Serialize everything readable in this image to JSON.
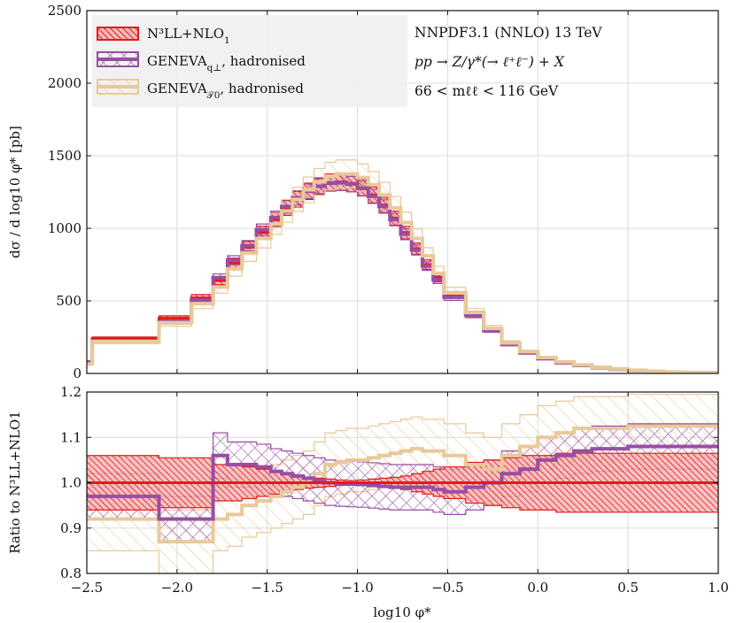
{
  "colors": {
    "n3ll": "#e41a1c",
    "geneva_qt": "#984ea3",
    "geneva_tau": "#e8c99a"
  },
  "legend": [
    {
      "key": "n3ll",
      "base": "N³LL+NLO",
      "sub": "1",
      "tail": ""
    },
    {
      "key": "geneva_qt",
      "base": "GENEVA",
      "sub": "q⊥",
      "tail": ", hadronised"
    },
    {
      "key": "geneva_tau",
      "base": "GENEVA",
      "sub": "𝒯0",
      "tail": ", hadronised"
    }
  ],
  "annotations": [
    "NNPDF3.1 (NNLO) 13 TeV",
    "pp → Z/γ*(→ ℓ⁺ℓ⁻) + X",
    "66 < mℓℓ < 116 GeV"
  ],
  "chart_data": [
    {
      "type": "line",
      "title": "",
      "xlabel": "log10 φ*",
      "ylabel": "dσ / d log10 φ* [pb]",
      "xlim": [
        -2.5,
        1.0
      ],
      "ylim": [
        0,
        2500
      ],
      "xticks": [
        "−2.5",
        "−2.0",
        "−1.5",
        "−1.0",
        "−0.5",
        "0.0",
        "0.5",
        "1.0"
      ],
      "yticks": [
        "0",
        "500",
        "1000",
        "1500",
        "2000",
        "2500"
      ],
      "bin_edges": [
        -2.5,
        -2.47,
        -2.1,
        -1.92,
        -1.8,
        -1.72,
        -1.64,
        -1.56,
        -1.48,
        -1.42,
        -1.36,
        -1.3,
        -1.24,
        -1.18,
        -1.12,
        -1.06,
        -1.0,
        -0.94,
        -0.88,
        -0.82,
        -0.76,
        -0.7,
        -0.64,
        -0.58,
        -0.52,
        -0.4,
        -0.3,
        -0.2,
        -0.1,
        0.0,
        0.1,
        0.2,
        0.3,
        0.4,
        0.5,
        0.6,
        0.7,
        0.8,
        1.0
      ],
      "series": [
        {
          "name": "N³LL+NLO1",
          "values": [
            80,
            240,
            380,
            520,
            640,
            760,
            870,
            970,
            1060,
            1140,
            1200,
            1255,
            1290,
            1315,
            1320,
            1310,
            1280,
            1230,
            1160,
            1070,
            970,
            860,
            750,
            660,
            540,
            410,
            300,
            200,
            140,
            100,
            72,
            52,
            38,
            27,
            19,
            13,
            9,
            5
          ],
          "unc": 0.045
        },
        {
          "name": "GENEVA q⊥, hadronised",
          "values": [
            80,
            225,
            355,
            505,
            660,
            780,
            880,
            990,
            1075,
            1150,
            1210,
            1255,
            1290,
            1310,
            1315,
            1305,
            1275,
            1220,
            1150,
            1060,
            960,
            850,
            740,
            645,
            525,
            400,
            295,
            200,
            142,
            102,
            75,
            55,
            40,
            29,
            20,
            14,
            9,
            5
          ],
          "unc": 0.04
        },
        {
          "name": "GENEVA 𝒯0, hadronised",
          "values": [
            65,
            220,
            350,
            480,
            595,
            720,
            830,
            930,
            1030,
            1120,
            1200,
            1265,
            1320,
            1360,
            1375,
            1375,
            1350,
            1300,
            1230,
            1140,
            1040,
            930,
            810,
            690,
            555,
            420,
            310,
            210,
            150,
            110,
            80,
            59,
            43,
            31,
            22,
            15,
            10,
            5
          ],
          "unc": 0.07
        }
      ]
    },
    {
      "type": "line",
      "title": "",
      "xlabel": "log10 φ*",
      "ylabel": "Ratio to N³LL+NLO1",
      "xlim": [
        -2.5,
        1.0
      ],
      "ylim": [
        0.8,
        1.2
      ],
      "xticks": [
        "−2.5",
        "−2.0",
        "−1.5",
        "−1.0",
        "−0.5",
        "0.0",
        "0.5",
        "1.0"
      ],
      "yticks": [
        "0.8",
        "0.9",
        "1.0",
        "1.1",
        "1.2"
      ],
      "ratio_edges": [
        -2.5,
        -2.1,
        -1.8,
        -1.72,
        -1.64,
        -1.56,
        -1.48,
        -1.42,
        -1.36,
        -1.3,
        -1.24,
        -1.18,
        -1.12,
        -1.06,
        -1.0,
        -0.94,
        -0.88,
        -0.82,
        -0.76,
        -0.7,
        -0.64,
        -0.58,
        -0.52,
        -0.4,
        -0.3,
        -0.2,
        -0.1,
        0.0,
        0.1,
        0.2,
        0.3,
        0.4,
        0.5,
        0.6,
        0.7,
        0.8,
        1.0
      ],
      "series": [
        {
          "name": "N³LL+NLO1",
          "values": [
            1.0,
            1.0,
            1.0,
            1.0,
            1.0,
            1.0,
            1.0,
            1.0,
            1.0,
            1.0,
            1.0,
            1.0,
            1.0,
            1.0,
            1.0,
            1.0,
            1.0,
            1.0,
            1.0,
            1.0,
            1.0,
            1.0,
            1.0,
            1.0,
            1.0,
            1.0,
            1.0,
            1.0,
            1.0,
            1.0,
            1.0,
            1.0,
            1.0,
            1.0,
            1.0,
            1.0
          ],
          "up": [
            1.06,
            1.055,
            1.04,
            1.04,
            1.035,
            1.03,
            1.025,
            1.02,
            1.015,
            1.012,
            1.01,
            1.008,
            1.006,
            1.005,
            1.006,
            1.008,
            1.01,
            1.012,
            1.015,
            1.02,
            1.025,
            1.03,
            1.035,
            1.045,
            1.05,
            1.055,
            1.06,
            1.06,
            1.065,
            1.065,
            1.065,
            1.065,
            1.065,
            1.065,
            1.065,
            1.065
          ],
          "down": [
            0.94,
            0.945,
            0.96,
            0.96,
            0.965,
            0.97,
            0.975,
            0.98,
            0.985,
            0.988,
            0.99,
            0.992,
            0.994,
            0.995,
            0.994,
            0.992,
            0.99,
            0.988,
            0.985,
            0.98,
            0.975,
            0.97,
            0.965,
            0.955,
            0.95,
            0.945,
            0.94,
            0.94,
            0.935,
            0.935,
            0.935,
            0.935,
            0.935,
            0.935,
            0.935,
            0.935
          ]
        },
        {
          "name": "GENEVA q⊥, hadronised",
          "values": [
            0.97,
            0.92,
            1.06,
            1.04,
            1.04,
            1.035,
            1.025,
            1.02,
            1.015,
            1.01,
            1.005,
            1.0,
            0.998,
            0.997,
            0.996,
            0.994,
            0.992,
            0.99,
            0.99,
            0.99,
            0.99,
            0.985,
            0.98,
            0.99,
            1.0,
            1.02,
            1.03,
            1.05,
            1.06,
            1.07,
            1.075,
            1.075,
            1.08,
            1.08,
            1.08,
            1.08
          ],
          "unc": 0.05
        },
        {
          "name": "GENEVA 𝒯0, hadronised",
          "values": [
            0.92,
            0.87,
            0.92,
            0.93,
            0.95,
            0.96,
            0.97,
            0.98,
            0.99,
            1.0,
            1.02,
            1.04,
            1.045,
            1.05,
            1.05,
            1.055,
            1.06,
            1.065,
            1.07,
            1.075,
            1.07,
            1.07,
            1.06,
            1.04,
            1.03,
            1.06,
            1.08,
            1.1,
            1.11,
            1.12,
            1.12,
            1.12,
            1.125,
            1.125,
            1.125,
            1.125
          ],
          "unc": 0.07
        }
      ]
    }
  ]
}
